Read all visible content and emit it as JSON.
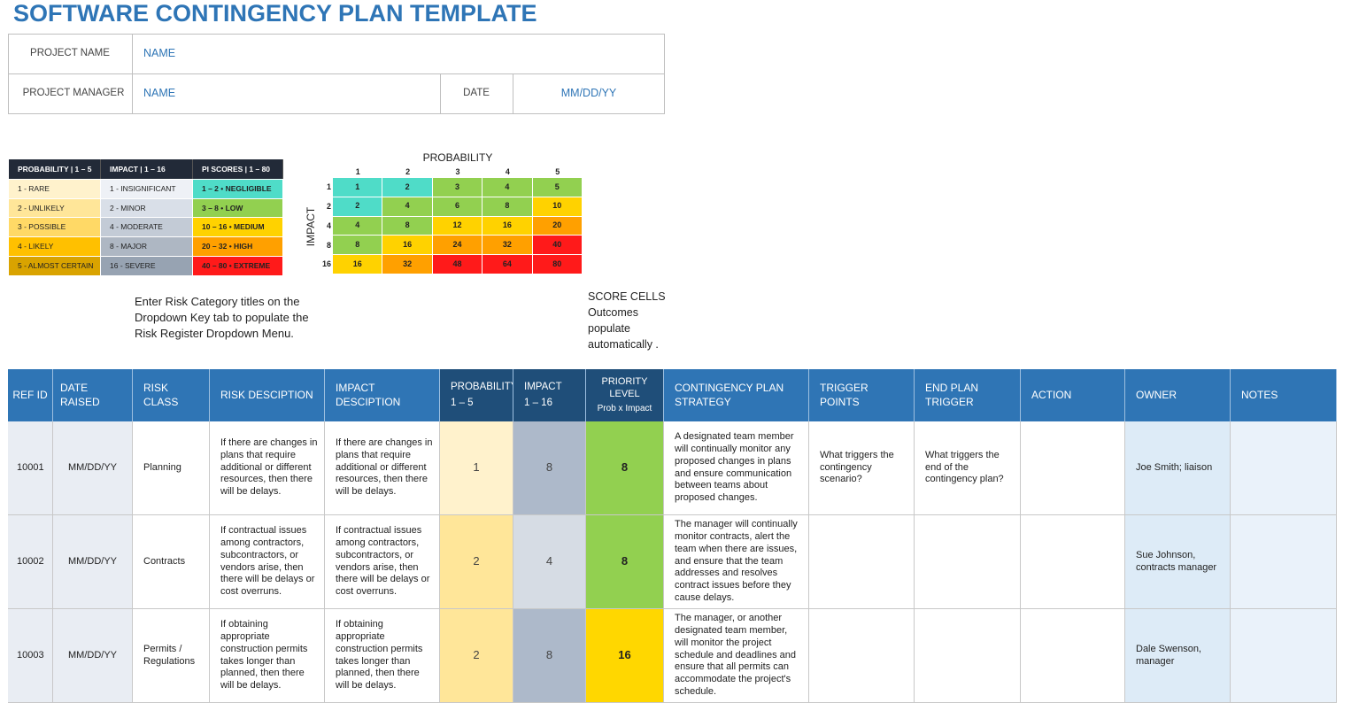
{
  "title": "SOFTWARE CONTINGENCY PLAN TEMPLATE",
  "project": {
    "name_label": "PROJECT NAME",
    "name": "NAME",
    "manager_label": "PROJECT MANAGER",
    "manager": "NAME",
    "date_label": "DATE",
    "date": "MM/DD/YY"
  },
  "legend": {
    "headers": [
      "PROBABILITY | 1 – 5",
      "IMPACT | 1 – 16",
      "PI SCORES | 1 – 80"
    ],
    "rows": [
      [
        "1 - RARE",
        "1 - INSIGNIFICANT",
        "1 – 2 • NEGLIGIBLE"
      ],
      [
        "2 - UNLIKELY",
        "2 - MINOR",
        "3 – 8 • LOW"
      ],
      [
        "3 - POSSIBLE",
        "4 - MODERATE",
        "10 – 16 • MEDIUM"
      ],
      [
        "4 - LIKELY",
        "8 - MAJOR",
        "20 – 32 • HIGH"
      ],
      [
        "5 - ALMOST CERTAIN",
        "16 - SEVERE",
        "40 – 80 • EXTREME"
      ]
    ]
  },
  "matrix": {
    "title": "PROBABILITY",
    "axis_label": "IMPACT",
    "columns": [
      1,
      2,
      3,
      4,
      5
    ],
    "rows": [
      {
        "label": 1,
        "cells": [
          1,
          2,
          3,
          4,
          5
        ]
      },
      {
        "label": 2,
        "cells": [
          2,
          4,
          6,
          8,
          10
        ]
      },
      {
        "label": 4,
        "cells": [
          4,
          8,
          12,
          16,
          20
        ]
      },
      {
        "label": 8,
        "cells": [
          8,
          16,
          24,
          32,
          40
        ]
      },
      {
        "label": 16,
        "cells": [
          16,
          32,
          48,
          64,
          80
        ]
      }
    ]
  },
  "notes": {
    "category": "Enter Risk Category titles on the Dropdown Key tab to populate the Risk Register Dropdown Menu.",
    "score": "SCORE CELLS Outcomes populate automatically ."
  },
  "register": {
    "headers": [
      "REF ID",
      "DATE RAISED",
      "RISK CLASS",
      "RISK DESCIPTION",
      "IMPACT DESCIPTION",
      {
        "title": "PROBABILITY",
        "detail": "1 – 5"
      },
      {
        "title": "IMPACT",
        "detail": "1 – 16"
      },
      {
        "title": "PRIORITY LEVEL",
        "detail": "Prob x Impact"
      },
      "CONTINGENCY PLAN STRATEGY",
      "TRIGGER POINTS",
      "END PLAN TRIGGER",
      "ACTION",
      "OWNER",
      "NOTES"
    ],
    "rows": [
      {
        "ref_id": 10001,
        "date_raised": "MM/DD/YY",
        "risk_class": "Planning",
        "risk_description": "If there are changes in plans that require additional or different resources, then there will be delays.",
        "impact_description": "If there are changes in plans that require additional or different resources, then there will be delays.",
        "probability": 1,
        "impact": 8,
        "priority": 8,
        "strategy": "A designated team member will continually monitor any proposed changes in plans and ensure communication between teams about proposed changes.",
        "trigger_points": "What triggers the contingency scenario?",
        "end_plan_trigger": "What triggers the end of the contingency plan?",
        "owner": "Joe Smith;  liaison"
      },
      {
        "ref_id": 10002,
        "date_raised": "MM/DD/YY",
        "risk_class": "Contracts",
        "risk_description": "If contractual issues among contractors, subcontractors, or vendors arise, then there will be delays or cost overruns.",
        "impact_description": "If contractual issues among contractors, subcontractors, or vendors arise, then there will be delays or cost overruns.",
        "probability": 2,
        "impact": 4,
        "priority": 8,
        "strategy": "The manager will continually monitor contracts, alert the team when there are issues, and ensure that the team addresses and resolves contract issues before they cause delays.",
        "owner": "Sue Johnson, contracts manager"
      },
      {
        "ref_id": 10003,
        "date_raised": "MM/DD/YY",
        "risk_class": "Permits / Regulations",
        "risk_description": "If obtaining appropriate construction permits takes longer than planned, then there will be delays.",
        "impact_description": "If obtaining appropriate construction permits takes longer than planned, then there will be delays.",
        "probability": 2,
        "impact": 8,
        "priority": 16,
        "strategy": "The manager, or another designated team member, will monitor the project schedule and deadlines and ensure that all permits can accommodate the project's  schedule.",
        "owner": "Dale Swenson, manager"
      }
    ]
  }
}
